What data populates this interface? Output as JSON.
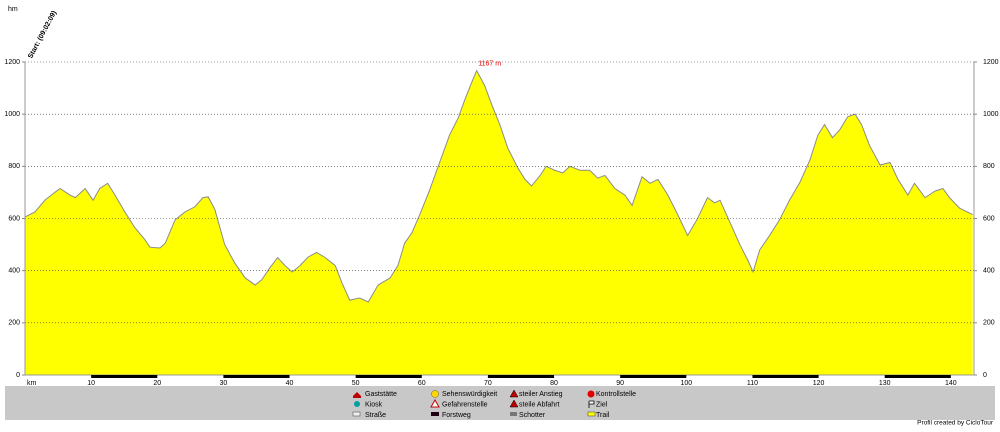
{
  "chart_data": {
    "type": "area",
    "y_label": "hm",
    "start_label": "Start: (09:02:09)",
    "peak_label": "1167 m",
    "credit": "Profil created by CicloTour",
    "color": "#ffff00",
    "line_color": "#8c8c8c",
    "grid": true,
    "xlim": [
      0,
      143.5
    ],
    "ylim": [
      0,
      1200
    ],
    "xticks": [
      {
        "value": 0,
        "label": "km"
      },
      10,
      20,
      30,
      40,
      50,
      60,
      70,
      80,
      90,
      100,
      110,
      120,
      130,
      140
    ],
    "yticks": [
      0,
      200,
      400,
      600,
      800,
      1000,
      1200
    ],
    "x": [
      0,
      1.5,
      3,
      4.5,
      5.3,
      6.8,
      7.6,
      9.1,
      10.3,
      11.3,
      12.5,
      13.6,
      15.1,
      16.6,
      18.1,
      18.9,
      20.4,
      21.2,
      22.7,
      24.2,
      25.7,
      26.9,
      27.7,
      28.7,
      30.2,
      31.7,
      33.3,
      34.8,
      35.8,
      37,
      38.2,
      39.3,
      40.4,
      41.6,
      42.8,
      44.1,
      45.4,
      46.9,
      47.9,
      49.1,
      50.6,
      51.9,
      53.4,
      55.2,
      56.4,
      57.4,
      58.5,
      59.7,
      61.2,
      62.7,
      64.2,
      65.5,
      66.5,
      67.6,
      68.3,
      69.5,
      70.6,
      71.8,
      73,
      74.5,
      75.6,
      76.6,
      77.9,
      78.8,
      80.1,
      81.3,
      82.4,
      83.9,
      85.4,
      86.6,
      87.7,
      89.2,
      90.7,
      91.8,
      93.3,
      94.5,
      95.7,
      97.2,
      98.7,
      100.2,
      101.6,
      103.2,
      104.3,
      105.1,
      106.6,
      108.1,
      109.3,
      110.1,
      111.1,
      112.6,
      114.1,
      115.6,
      117.2,
      118.7,
      119.9,
      120.9,
      122.1,
      123.2,
      124.4,
      125.5,
      126.5,
      127.7,
      129.3,
      130.8,
      132,
      133.5,
      134.5,
      136.1,
      137.6,
      138.8,
      139.8,
      141.3,
      143.3
    ],
    "values": [
      606,
      625,
      670,
      700,
      715,
      690,
      680,
      715,
      670,
      715,
      735,
      690,
      625,
      565,
      520,
      490,
      487,
      505,
      595,
      625,
      645,
      680,
      683,
      635,
      500,
      430,
      372,
      345,
      365,
      410,
      450,
      420,
      395,
      420,
      452,
      470,
      450,
      420,
      355,
      287,
      295,
      280,
      345,
      372,
      420,
      505,
      545,
      615,
      710,
      815,
      920,
      985,
      1055,
      1125,
      1167,
      1110,
      1035,
      960,
      870,
      795,
      750,
      725,
      765,
      800,
      785,
      775,
      800,
      785,
      785,
      755,
      765,
      715,
      690,
      650,
      760,
      735,
      750,
      690,
      615,
      535,
      595,
      680,
      660,
      670,
      585,
      500,
      440,
      395,
      480,
      535,
      595,
      670,
      740,
      825,
      920,
      960,
      910,
      940,
      990,
      1000,
      960,
      880,
      805,
      815,
      750,
      690,
      735,
      680,
      705,
      715,
      680,
      640,
      615
    ],
    "legend": [
      "Gaststätte",
      "Kiosk",
      "Straße",
      "Sehenswürdigkeit",
      "Gefahrenstelle",
      "Forstweg",
      "steiler Anstieg",
      "steile Abfahrt",
      "Schotter",
      "Kontrollstelle",
      "Ziel",
      "Trail"
    ]
  }
}
